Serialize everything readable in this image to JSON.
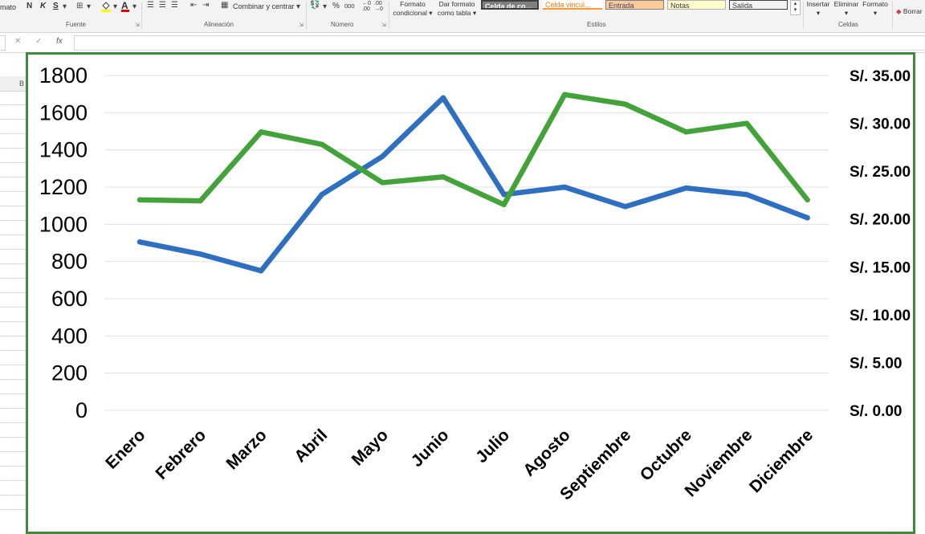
{
  "ribbon": {
    "cut_left_label": "mato",
    "font_buttons": [
      "N",
      "K",
      "S"
    ],
    "groups": {
      "fuente": "Fuente",
      "alineacion": "Alineación",
      "numero": "Número",
      "estilos": "Estilos",
      "celdas": "Celdas"
    },
    "merge_label": "Combinar y centrar",
    "percent_symbol": "%",
    "thousands_symbol": "000",
    "conditional_format": [
      "Formato",
      "condicional"
    ],
    "format_as_table": [
      "Dar formato",
      "como tabla"
    ],
    "cell_styles": [
      {
        "label": "Celda de co...",
        "bg": "#7f7f7f",
        "fg": "#ffffff",
        "border": "#3f3f3f"
      },
      {
        "label": "Celda vincul...",
        "bg": "#ffffff",
        "fg": "#fa7d00",
        "border": "#ff9a3a"
      },
      {
        "label": "Entrada",
        "bg": "#ffcc99",
        "fg": "#3f3f76",
        "border": "#7f7f7f"
      },
      {
        "label": "Notas",
        "bg": "#ffffcc",
        "fg": "#333333",
        "border": "#b2b2b2"
      },
      {
        "label": "Salida",
        "bg": "#f2f2f2",
        "fg": "#3f3f3f",
        "border": "#3f3f3f"
      }
    ],
    "cells_buttons": [
      "Insertar",
      "Eliminar",
      "Formato"
    ],
    "clear_label": "Borrar"
  },
  "formula_bar": {
    "cancel_symbol": "✕",
    "enter_symbol": "✓",
    "fx_label": "fx",
    "value": ""
  },
  "sheet": {
    "column_header": "B"
  },
  "chart_data": {
    "type": "line",
    "categories": [
      "Enero",
      "Febrero",
      "Marzo",
      "Abril",
      "Mayo",
      "Junio",
      "Julio",
      "Agosto",
      "Septiembre",
      "Octubre",
      "Noviembre",
      "Diciembre"
    ],
    "y_left": {
      "min": 0,
      "max": 1800,
      "step": 200,
      "ticks": [
        "0",
        "200",
        "400",
        "600",
        "800",
        "1000",
        "1200",
        "1400",
        "1600",
        "1800"
      ]
    },
    "y_right": {
      "min": 0,
      "max": 35,
      "step": 5,
      "ticks": [
        "S/. 0.00",
        "S/. 5.00",
        "S/. 10.00",
        "S/. 15.00",
        "S/. 20.00",
        "S/. 25.00",
        "S/. 30.00",
        "S/. 35.00"
      ]
    },
    "grid": true,
    "legend": "none",
    "series": [
      {
        "axis": "left",
        "color": "#2e6fc0",
        "values": [
          905,
          840,
          750,
          1160,
          1365,
          1680,
          1160,
          1200,
          1095,
          1195,
          1160,
          1035
        ]
      },
      {
        "axis": "right",
        "color": "#43a33a",
        "values": [
          22.0,
          21.9,
          29.1,
          27.8,
          23.8,
          24.4,
          21.5,
          33.0,
          32.0,
          29.1,
          30.0,
          22.0
        ]
      }
    ],
    "title": "",
    "xlabel": "",
    "ylabel": ""
  },
  "colors": {
    "chart_border": "#3f8a3f",
    "gridline": "#e0e0e0"
  }
}
